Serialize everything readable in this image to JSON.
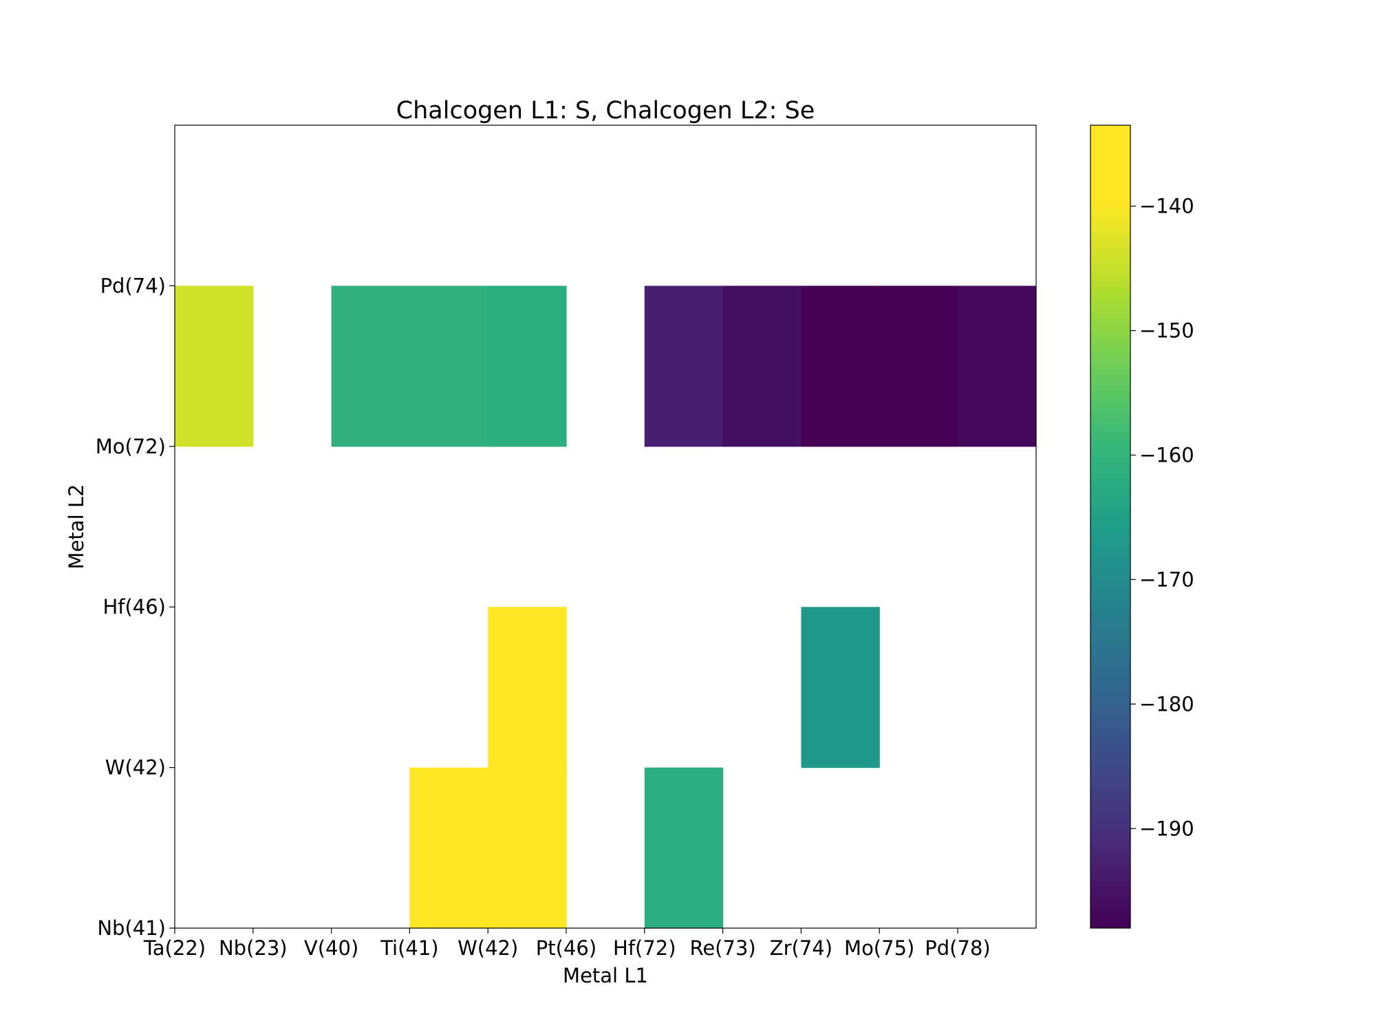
{
  "chart_data": {
    "type": "heatmap",
    "title": "Chalcogen L1: S, Chalcogen L2: Se",
    "xlabel": "Metal L1",
    "ylabel": "Metal L2",
    "x_tick_labels": [
      "Ta(22)",
      "Nb(23)",
      "V(40)",
      "Ti(41)",
      "W(42)",
      "Pt(46)",
      "Hf(72)",
      "Re(73)",
      "Zr(74)",
      "Mo(75)",
      "Pd(78)"
    ],
    "y_tick_labels": [
      "Nb(41)",
      "W(42)",
      "Hf(46)",
      "Mo(72)",
      "Pd(74)"
    ],
    "cells": [
      {
        "x": "Ta(22)",
        "y": "Mo(72)",
        "value": -144
      },
      {
        "x": "V(40)",
        "y": "Mo(72)",
        "value": -161
      },
      {
        "x": "Ti(41)",
        "y": "Mo(72)",
        "value": -161
      },
      {
        "x": "W(42)",
        "y": "Mo(72)",
        "value": -161.5
      },
      {
        "x": "Hf(72)",
        "y": "Mo(72)",
        "value": -193
      },
      {
        "x": "Re(73)",
        "y": "Mo(72)",
        "value": -195.5
      },
      {
        "x": "Zr(74)",
        "y": "Mo(72)",
        "value": -198
      },
      {
        "x": "Mo(75)",
        "y": "Mo(72)",
        "value": -198
      },
      {
        "x": "Pd(78)",
        "y": "Mo(72)",
        "value": -196.5
      },
      {
        "x": "Ti(41)",
        "y": "Nb(41)",
        "value": -134
      },
      {
        "x": "W(42)",
        "y": "Nb(41)",
        "value": -133.5
      },
      {
        "x": "W(42)",
        "y": "W(42)",
        "value": -133.5
      },
      {
        "x": "Hf(72)",
        "y": "Nb(41)",
        "value": -162
      },
      {
        "x": "Zr(74)",
        "y": "W(42)",
        "value": -167
      }
    ],
    "colorbar": {
      "min": -198,
      "max": -133.5,
      "ticks": [
        -140,
        -150,
        -160,
        -170,
        -180,
        -190
      ],
      "tick_labels": [
        "−140",
        "−150",
        "−160",
        "−170",
        "−180",
        "−190"
      ],
      "colormap": "viridis"
    },
    "grid": false
  }
}
